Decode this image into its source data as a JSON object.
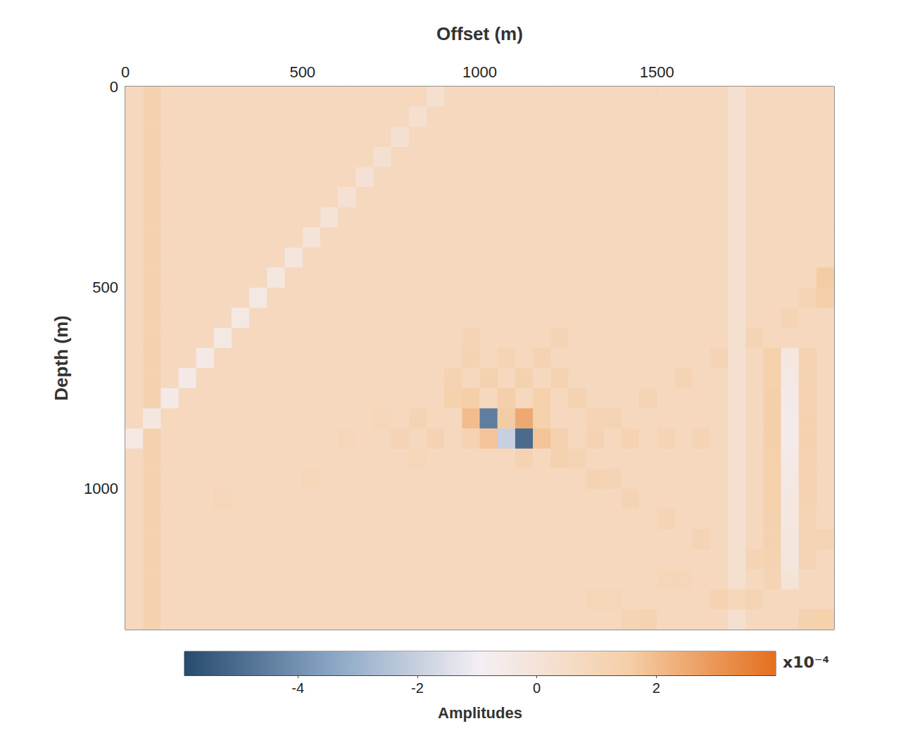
{
  "chart_data": {
    "type": "heatmap",
    "xlabel": "Offset (m)",
    "ylabel": "Depth (m)",
    "xlim": [
      0,
      2000
    ],
    "ylim": [
      0,
      1350
    ],
    "xticks": [
      0,
      500,
      1000,
      1500
    ],
    "yticks": [
      0,
      500,
      1000
    ],
    "x_edges": [
      0,
      50,
      100,
      150,
      200,
      250,
      300,
      350,
      400,
      450,
      500,
      550,
      600,
      650,
      700,
      750,
      800,
      850,
      900,
      950,
      1000,
      1050,
      1100,
      1150,
      1200,
      1250,
      1300,
      1350,
      1400,
      1450,
      1500,
      1550,
      1600,
      1650,
      1700,
      1750,
      1800,
      1850,
      1900,
      1950,
      2000
    ],
    "y_edges": [
      0,
      50,
      100,
      150,
      200,
      250,
      300,
      350,
      400,
      450,
      500,
      550,
      600,
      650,
      700,
      750,
      800,
      850,
      900,
      950,
      1000,
      1050,
      1100,
      1150,
      1200,
      1250,
      1300,
      1350
    ],
    "cells": [
      [
        0.8,
        1.3,
        0.8,
        0.8,
        0.8,
        0.8,
        0.8,
        0.8,
        0.8,
        0.8,
        0.8,
        0.8,
        0.8,
        0.8,
        0.8,
        0.8,
        0.8,
        0.3,
        0.8,
        0.8,
        0.8,
        0.8,
        0.8,
        0.8,
        0.8,
        0.8,
        0.8,
        0.8,
        0.8,
        0.8,
        0.8,
        0.8,
        0.8,
        0.8,
        0.3,
        0.8,
        0.8,
        0.8,
        0.8,
        0.8
      ],
      [
        0.8,
        1.3,
        0.8,
        0.8,
        0.8,
        0.8,
        0.8,
        0.8,
        0.8,
        0.8,
        0.8,
        0.8,
        0.8,
        0.8,
        0.8,
        0.8,
        0.3,
        0.8,
        0.8,
        0.8,
        0.8,
        0.8,
        0.8,
        0.8,
        0.8,
        0.8,
        0.8,
        0.8,
        0.8,
        0.8,
        0.8,
        0.8,
        0.8,
        0.8,
        0.3,
        0.8,
        0.8,
        0.8,
        0.8,
        0.8
      ],
      [
        0.8,
        1.3,
        0.8,
        0.8,
        0.8,
        0.8,
        0.8,
        0.8,
        0.8,
        0.8,
        0.8,
        0.8,
        0.8,
        0.8,
        0.8,
        0.2,
        0.8,
        0.8,
        0.8,
        0.8,
        0.8,
        0.8,
        0.8,
        0.8,
        0.8,
        0.8,
        0.8,
        0.8,
        0.8,
        0.8,
        0.8,
        0.8,
        0.8,
        0.8,
        0.3,
        0.8,
        0.8,
        0.8,
        0.8,
        0.8
      ],
      [
        0.8,
        1.3,
        0.8,
        0.8,
        0.8,
        0.8,
        0.8,
        0.8,
        0.8,
        0.8,
        0.8,
        0.8,
        0.8,
        0.8,
        0.2,
        0.8,
        0.8,
        0.8,
        0.8,
        0.8,
        0.8,
        0.8,
        0.8,
        0.8,
        0.8,
        0.8,
        0.8,
        0.8,
        0.8,
        0.8,
        0.8,
        0.8,
        0.8,
        0.8,
        0.3,
        0.8,
        0.8,
        0.8,
        0.8,
        0.8
      ],
      [
        0.8,
        1.3,
        0.8,
        0.8,
        0.8,
        0.8,
        0.8,
        0.8,
        0.8,
        0.8,
        0.8,
        0.8,
        0.8,
        0.1,
        0.8,
        0.8,
        0.8,
        0.8,
        0.8,
        0.8,
        0.8,
        0.8,
        0.8,
        0.8,
        0.8,
        0.8,
        0.8,
        0.8,
        0.8,
        0.8,
        0.8,
        0.8,
        0.8,
        0.8,
        0.3,
        0.8,
        0.8,
        0.8,
        0.8,
        0.8
      ],
      [
        0.8,
        1.3,
        0.8,
        0.8,
        0.8,
        0.8,
        0.8,
        0.8,
        0.8,
        0.8,
        0.8,
        0.8,
        0.1,
        0.8,
        0.8,
        0.8,
        0.8,
        0.8,
        0.8,
        0.8,
        0.8,
        0.8,
        0.8,
        0.8,
        0.8,
        0.8,
        0.8,
        0.8,
        0.8,
        0.8,
        0.8,
        0.8,
        0.8,
        0.8,
        0.3,
        0.8,
        0.8,
        0.8,
        0.8,
        0.8
      ],
      [
        0.8,
        1.3,
        0.8,
        0.8,
        0.8,
        0.8,
        0.8,
        0.8,
        0.8,
        0.8,
        0.8,
        0.0,
        0.8,
        0.8,
        0.8,
        0.8,
        0.8,
        0.8,
        0.8,
        0.8,
        0.8,
        0.8,
        0.8,
        0.8,
        0.8,
        0.8,
        0.8,
        0.8,
        0.8,
        0.8,
        0.8,
        0.8,
        0.8,
        0.8,
        0.3,
        0.8,
        0.8,
        0.8,
        0.8,
        0.8
      ],
      [
        0.8,
        1.3,
        0.8,
        0.8,
        0.8,
        0.8,
        0.8,
        0.8,
        0.8,
        0.8,
        0.0,
        0.8,
        0.8,
        0.8,
        0.8,
        0.8,
        0.8,
        0.8,
        0.8,
        0.8,
        0.8,
        0.8,
        0.8,
        0.8,
        0.8,
        0.8,
        0.8,
        0.8,
        0.8,
        0.8,
        0.8,
        0.8,
        0.8,
        0.8,
        0.3,
        0.8,
        0.8,
        0.8,
        0.8,
        0.8
      ],
      [
        0.8,
        1.3,
        0.8,
        0.8,
        0.8,
        0.8,
        0.8,
        0.8,
        0.8,
        -0.2,
        0.8,
        0.8,
        0.8,
        0.8,
        0.8,
        0.8,
        0.8,
        0.8,
        0.8,
        0.8,
        0.8,
        0.8,
        0.8,
        0.8,
        0.8,
        0.8,
        0.8,
        0.8,
        0.8,
        0.8,
        0.8,
        0.8,
        0.8,
        0.8,
        0.3,
        0.8,
        0.8,
        0.8,
        0.8,
        0.8
      ],
      [
        0.8,
        1.3,
        0.8,
        0.8,
        0.8,
        0.8,
        0.8,
        0.8,
        -0.3,
        0.8,
        0.8,
        0.8,
        0.8,
        0.8,
        0.8,
        0.8,
        0.8,
        0.8,
        0.8,
        0.8,
        0.8,
        0.8,
        0.8,
        0.8,
        0.8,
        0.8,
        0.8,
        0.8,
        0.8,
        0.8,
        0.8,
        0.8,
        0.8,
        0.8,
        0.3,
        0.8,
        0.8,
        0.8,
        0.8,
        1.6
      ],
      [
        0.8,
        1.3,
        0.8,
        0.8,
        0.8,
        0.8,
        0.8,
        -0.4,
        0.8,
        0.8,
        0.8,
        0.8,
        0.8,
        0.8,
        0.8,
        0.8,
        0.8,
        0.8,
        0.8,
        0.8,
        0.8,
        0.8,
        0.8,
        0.8,
        0.8,
        0.8,
        0.8,
        0.8,
        0.8,
        0.8,
        0.8,
        0.8,
        0.8,
        0.8,
        0.3,
        0.8,
        0.8,
        0.8,
        1.1,
        1.5
      ],
      [
        0.8,
        1.3,
        0.8,
        0.8,
        0.8,
        0.8,
        -0.4,
        0.8,
        0.8,
        0.8,
        0.8,
        0.8,
        0.8,
        0.8,
        0.8,
        0.8,
        0.8,
        0.8,
        0.8,
        0.8,
        0.8,
        0.8,
        0.8,
        0.8,
        0.8,
        0.8,
        0.8,
        0.8,
        0.8,
        0.8,
        0.8,
        0.8,
        0.8,
        0.8,
        0.3,
        0.8,
        0.8,
        1.1,
        0.8,
        0.8
      ],
      [
        0.8,
        1.3,
        0.8,
        0.8,
        0.8,
        -0.4,
        0.8,
        0.8,
        0.8,
        0.8,
        0.8,
        0.8,
        0.8,
        0.8,
        0.8,
        0.8,
        0.8,
        0.8,
        0.8,
        1.1,
        0.8,
        0.8,
        0.8,
        0.8,
        1.1,
        0.8,
        0.8,
        0.8,
        0.8,
        0.8,
        0.8,
        0.8,
        0.8,
        0.8,
        0.3,
        1.1,
        0.8,
        0.8,
        0.8,
        0.8
      ],
      [
        0.8,
        1.3,
        0.8,
        0.8,
        -0.5,
        0.8,
        0.8,
        0.8,
        0.8,
        0.8,
        0.8,
        0.8,
        0.8,
        0.8,
        0.8,
        0.8,
        0.8,
        0.8,
        0.8,
        1.2,
        0.8,
        1.1,
        0.8,
        1.2,
        0.8,
        0.8,
        0.8,
        0.8,
        0.8,
        0.8,
        0.8,
        0.8,
        0.8,
        1.1,
        0.3,
        0.8,
        1.4,
        -0.3,
        1.2,
        0.8
      ],
      [
        0.8,
        1.3,
        0.8,
        -0.5,
        0.8,
        0.8,
        0.8,
        0.8,
        0.8,
        0.8,
        0.8,
        0.8,
        0.8,
        0.8,
        0.8,
        0.8,
        0.8,
        0.8,
        1.2,
        0.8,
        1.3,
        0.8,
        1.3,
        0.8,
        1.2,
        0.8,
        0.8,
        0.8,
        0.8,
        0.8,
        0.8,
        1.1,
        0.8,
        0.8,
        0.3,
        0.8,
        1.4,
        -0.4,
        1.2,
        0.8
      ],
      [
        0.8,
        1.3,
        -0.5,
        0.8,
        0.8,
        0.8,
        0.8,
        0.8,
        0.8,
        0.8,
        0.8,
        0.8,
        0.8,
        0.8,
        0.8,
        0.8,
        0.8,
        0.8,
        1.4,
        1.5,
        0.8,
        1.5,
        0.8,
        1.4,
        0.8,
        1.2,
        0.8,
        0.8,
        0.8,
        1.1,
        0.8,
        0.8,
        0.8,
        0.8,
        0.3,
        0.8,
        1.5,
        -0.5,
        1.2,
        0.8
      ],
      [
        0.8,
        -0.3,
        0.8,
        0.8,
        0.8,
        0.8,
        0.8,
        0.8,
        0.8,
        0.8,
        0.8,
        0.8,
        0.8,
        0.8,
        1.0,
        0.8,
        1.1,
        0.8,
        0.8,
        2.0,
        -4.5,
        1.6,
        2.5,
        1.4,
        0.8,
        0.8,
        1.1,
        1.1,
        0.8,
        0.8,
        0.8,
        0.8,
        0.8,
        0.8,
        0.3,
        0.8,
        1.5,
        -0.6,
        1.3,
        0.8
      ],
      [
        -0.4,
        1.3,
        0.8,
        0.8,
        0.8,
        0.8,
        0.8,
        0.8,
        0.8,
        0.8,
        0.8,
        0.8,
        1.0,
        0.8,
        0.8,
        1.1,
        0.8,
        1.2,
        0.8,
        1.2,
        1.8,
        -2.0,
        -5.0,
        1.8,
        1.3,
        0.8,
        1.2,
        0.8,
        1.2,
        0.8,
        1.1,
        0.8,
        1.1,
        0.8,
        0.3,
        0.8,
        1.5,
        -0.6,
        1.3,
        0.8
      ],
      [
        0.8,
        1.3,
        0.8,
        0.8,
        0.8,
        0.8,
        0.8,
        0.8,
        0.8,
        0.8,
        0.8,
        0.8,
        0.8,
        0.8,
        0.8,
        0.8,
        1.0,
        0.8,
        0.8,
        0.8,
        0.8,
        0.8,
        1.2,
        0.8,
        1.3,
        1.1,
        0.8,
        0.8,
        0.8,
        0.8,
        0.8,
        0.8,
        0.8,
        0.8,
        0.3,
        0.8,
        1.4,
        -0.5,
        1.2,
        0.8
      ],
      [
        0.8,
        1.3,
        0.8,
        0.8,
        0.8,
        0.8,
        0.8,
        0.8,
        0.8,
        0.8,
        1.0,
        0.8,
        0.8,
        0.8,
        0.8,
        0.8,
        0.8,
        0.8,
        0.8,
        0.8,
        0.8,
        0.8,
        0.8,
        0.8,
        0.8,
        0.8,
        1.2,
        1.1,
        0.8,
        0.8,
        0.8,
        0.8,
        0.8,
        0.8,
        0.3,
        0.8,
        1.4,
        -0.4,
        1.2,
        0.8
      ],
      [
        0.8,
        1.3,
        0.8,
        0.8,
        0.8,
        1.0,
        0.8,
        0.8,
        0.8,
        0.8,
        0.8,
        0.8,
        0.8,
        0.8,
        0.8,
        0.8,
        0.8,
        0.8,
        0.8,
        0.8,
        0.8,
        0.8,
        0.8,
        0.8,
        0.8,
        0.8,
        0.8,
        0.8,
        1.1,
        0.8,
        0.8,
        0.8,
        0.8,
        0.8,
        0.3,
        0.8,
        1.4,
        -0.3,
        1.2,
        0.8
      ],
      [
        0.8,
        1.3,
        0.8,
        0.8,
        0.8,
        0.8,
        0.8,
        0.8,
        0.8,
        0.8,
        0.8,
        0.8,
        0.8,
        0.8,
        0.8,
        0.8,
        0.8,
        0.8,
        0.8,
        0.8,
        0.8,
        0.8,
        0.8,
        0.8,
        0.8,
        0.8,
        0.8,
        0.8,
        0.8,
        0.8,
        1.1,
        0.8,
        0.8,
        0.8,
        0.3,
        0.8,
        1.3,
        -0.3,
        1.1,
        0.8
      ],
      [
        0.8,
        1.3,
        0.8,
        0.8,
        0.8,
        0.8,
        0.8,
        0.8,
        0.8,
        0.8,
        0.8,
        0.8,
        0.8,
        0.8,
        0.8,
        0.8,
        0.8,
        0.8,
        0.8,
        0.8,
        0.8,
        0.8,
        0.8,
        0.8,
        0.8,
        0.8,
        0.8,
        0.8,
        0.8,
        0.8,
        0.8,
        0.8,
        1.1,
        0.8,
        0.3,
        0.8,
        1.3,
        -0.2,
        1.1,
        1.1
      ],
      [
        0.8,
        1.3,
        0.8,
        0.8,
        0.8,
        0.8,
        0.8,
        0.8,
        0.8,
        0.8,
        0.8,
        0.8,
        0.8,
        0.8,
        0.8,
        0.8,
        0.8,
        0.8,
        0.8,
        0.8,
        0.8,
        0.8,
        0.8,
        0.8,
        0.8,
        0.8,
        0.8,
        0.8,
        0.8,
        0.8,
        0.8,
        0.8,
        0.8,
        0.8,
        0.3,
        1.1,
        1.2,
        -0.2,
        1.1,
        0.8
      ],
      [
        0.8,
        1.3,
        0.8,
        0.8,
        0.8,
        0.8,
        0.8,
        0.8,
        0.8,
        0.8,
        0.8,
        0.8,
        0.8,
        0.8,
        0.8,
        0.8,
        0.8,
        0.8,
        0.8,
        0.8,
        0.8,
        0.8,
        0.8,
        0.8,
        0.8,
        0.8,
        0.8,
        0.8,
        0.8,
        0.8,
        1.0,
        1.0,
        0.8,
        0.8,
        0.3,
        0.8,
        1.1,
        0.0,
        0.8,
        0.8
      ],
      [
        0.8,
        1.3,
        0.8,
        0.8,
        0.8,
        0.8,
        0.8,
        0.8,
        0.8,
        0.8,
        0.8,
        0.8,
        0.8,
        0.8,
        0.8,
        0.8,
        0.8,
        0.8,
        0.8,
        0.8,
        0.8,
        0.8,
        0.8,
        0.8,
        0.8,
        0.8,
        1.0,
        1.0,
        0.8,
        0.8,
        0.8,
        0.8,
        0.8,
        1.2,
        1.0,
        1.1,
        0.8,
        0.8,
        0.8,
        0.8
      ],
      [
        0.8,
        1.3,
        0.8,
        0.8,
        0.8,
        0.8,
        0.8,
        0.8,
        0.8,
        0.8,
        0.8,
        0.8,
        0.8,
        0.8,
        0.8,
        0.8,
        0.8,
        0.8,
        0.8,
        0.8,
        0.8,
        0.8,
        0.8,
        0.8,
        0.8,
        0.8,
        0.8,
        0.8,
        1.1,
        1.2,
        0.8,
        0.8,
        0.8,
        0.8,
        0.3,
        0.8,
        0.8,
        0.8,
        1.3,
        1.4
      ]
    ],
    "colorbar": {
      "range": [
        -5.9,
        4
      ],
      "ticks": [
        -4,
        -2,
        0,
        2
      ],
      "label": "Amplitudes",
      "multiplier": "x10⁻⁴"
    }
  }
}
